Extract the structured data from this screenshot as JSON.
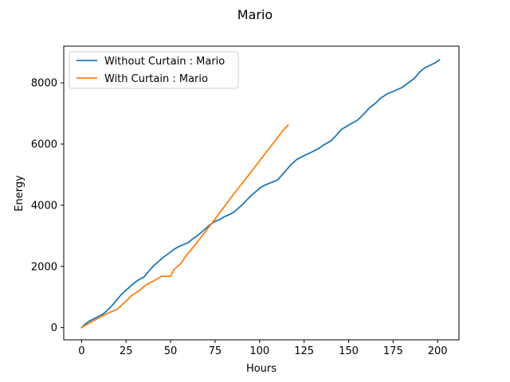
{
  "chart_data": {
    "type": "line",
    "title": "Mario",
    "xlabel": "Hours",
    "ylabel": "Energy",
    "xlim": [
      -10,
      212
    ],
    "ylim": [
      -400,
      9200
    ],
    "xticks": [
      0,
      25,
      50,
      75,
      100,
      125,
      150,
      175,
      200
    ],
    "yticks": [
      0,
      2000,
      4000,
      6000,
      8000
    ],
    "grid": false,
    "legend_position": "top-left",
    "series": [
      {
        "name": "Without Curtain : Mario",
        "color": "#1f77b4",
        "x": [
          0,
          2,
          4,
          6,
          8,
          10,
          12,
          14,
          16,
          18,
          20,
          22,
          25,
          28,
          30,
          32,
          35,
          38,
          40,
          43,
          46,
          50,
          52,
          55,
          60,
          62,
          65,
          68,
          70,
          72,
          75,
          78,
          80,
          84,
          86,
          88,
          90,
          92,
          95,
          98,
          100,
          103,
          106,
          110,
          112,
          115,
          118,
          121,
          125,
          128,
          130,
          133,
          136,
          140,
          143,
          146,
          150,
          155,
          158,
          162,
          165,
          168,
          172,
          175,
          180,
          183,
          187,
          190,
          193,
          196,
          199,
          201
        ],
        "y": [
          0,
          110,
          200,
          260,
          320,
          380,
          440,
          540,
          650,
          780,
          920,
          1060,
          1220,
          1380,
          1480,
          1560,
          1650,
          1860,
          1990,
          2150,
          2300,
          2470,
          2560,
          2660,
          2780,
          2880,
          3000,
          3150,
          3250,
          3360,
          3470,
          3550,
          3620,
          3720,
          3800,
          3900,
          4000,
          4120,
          4300,
          4450,
          4560,
          4660,
          4730,
          4820,
          4950,
          5150,
          5350,
          5500,
          5620,
          5700,
          5760,
          5850,
          5970,
          6100,
          6280,
          6480,
          6620,
          6780,
          6950,
          7200,
          7330,
          7500,
          7650,
          7720,
          7850,
          7980,
          8150,
          8360,
          8500,
          8580,
          8670,
          8750
        ]
      },
      {
        "name": "With Curtain : Mario",
        "color": "#ff7f0e",
        "x": [
          0,
          5,
          10,
          15,
          20,
          23,
          26,
          28,
          30,
          33,
          36,
          40,
          45,
          50,
          52,
          56,
          58,
          62,
          66,
          70,
          75,
          80,
          85,
          90,
          95,
          100,
          105,
          110,
          113,
          116
        ],
        "y": [
          0,
          170,
          330,
          480,
          600,
          760,
          920,
          1040,
          1120,
          1240,
          1390,
          1510,
          1680,
          1680,
          1900,
          2110,
          2290,
          2580,
          2870,
          3170,
          3550,
          3940,
          4330,
          4700,
          5070,
          5450,
          5830,
          6200,
          6440,
          6620
        ]
      }
    ]
  }
}
